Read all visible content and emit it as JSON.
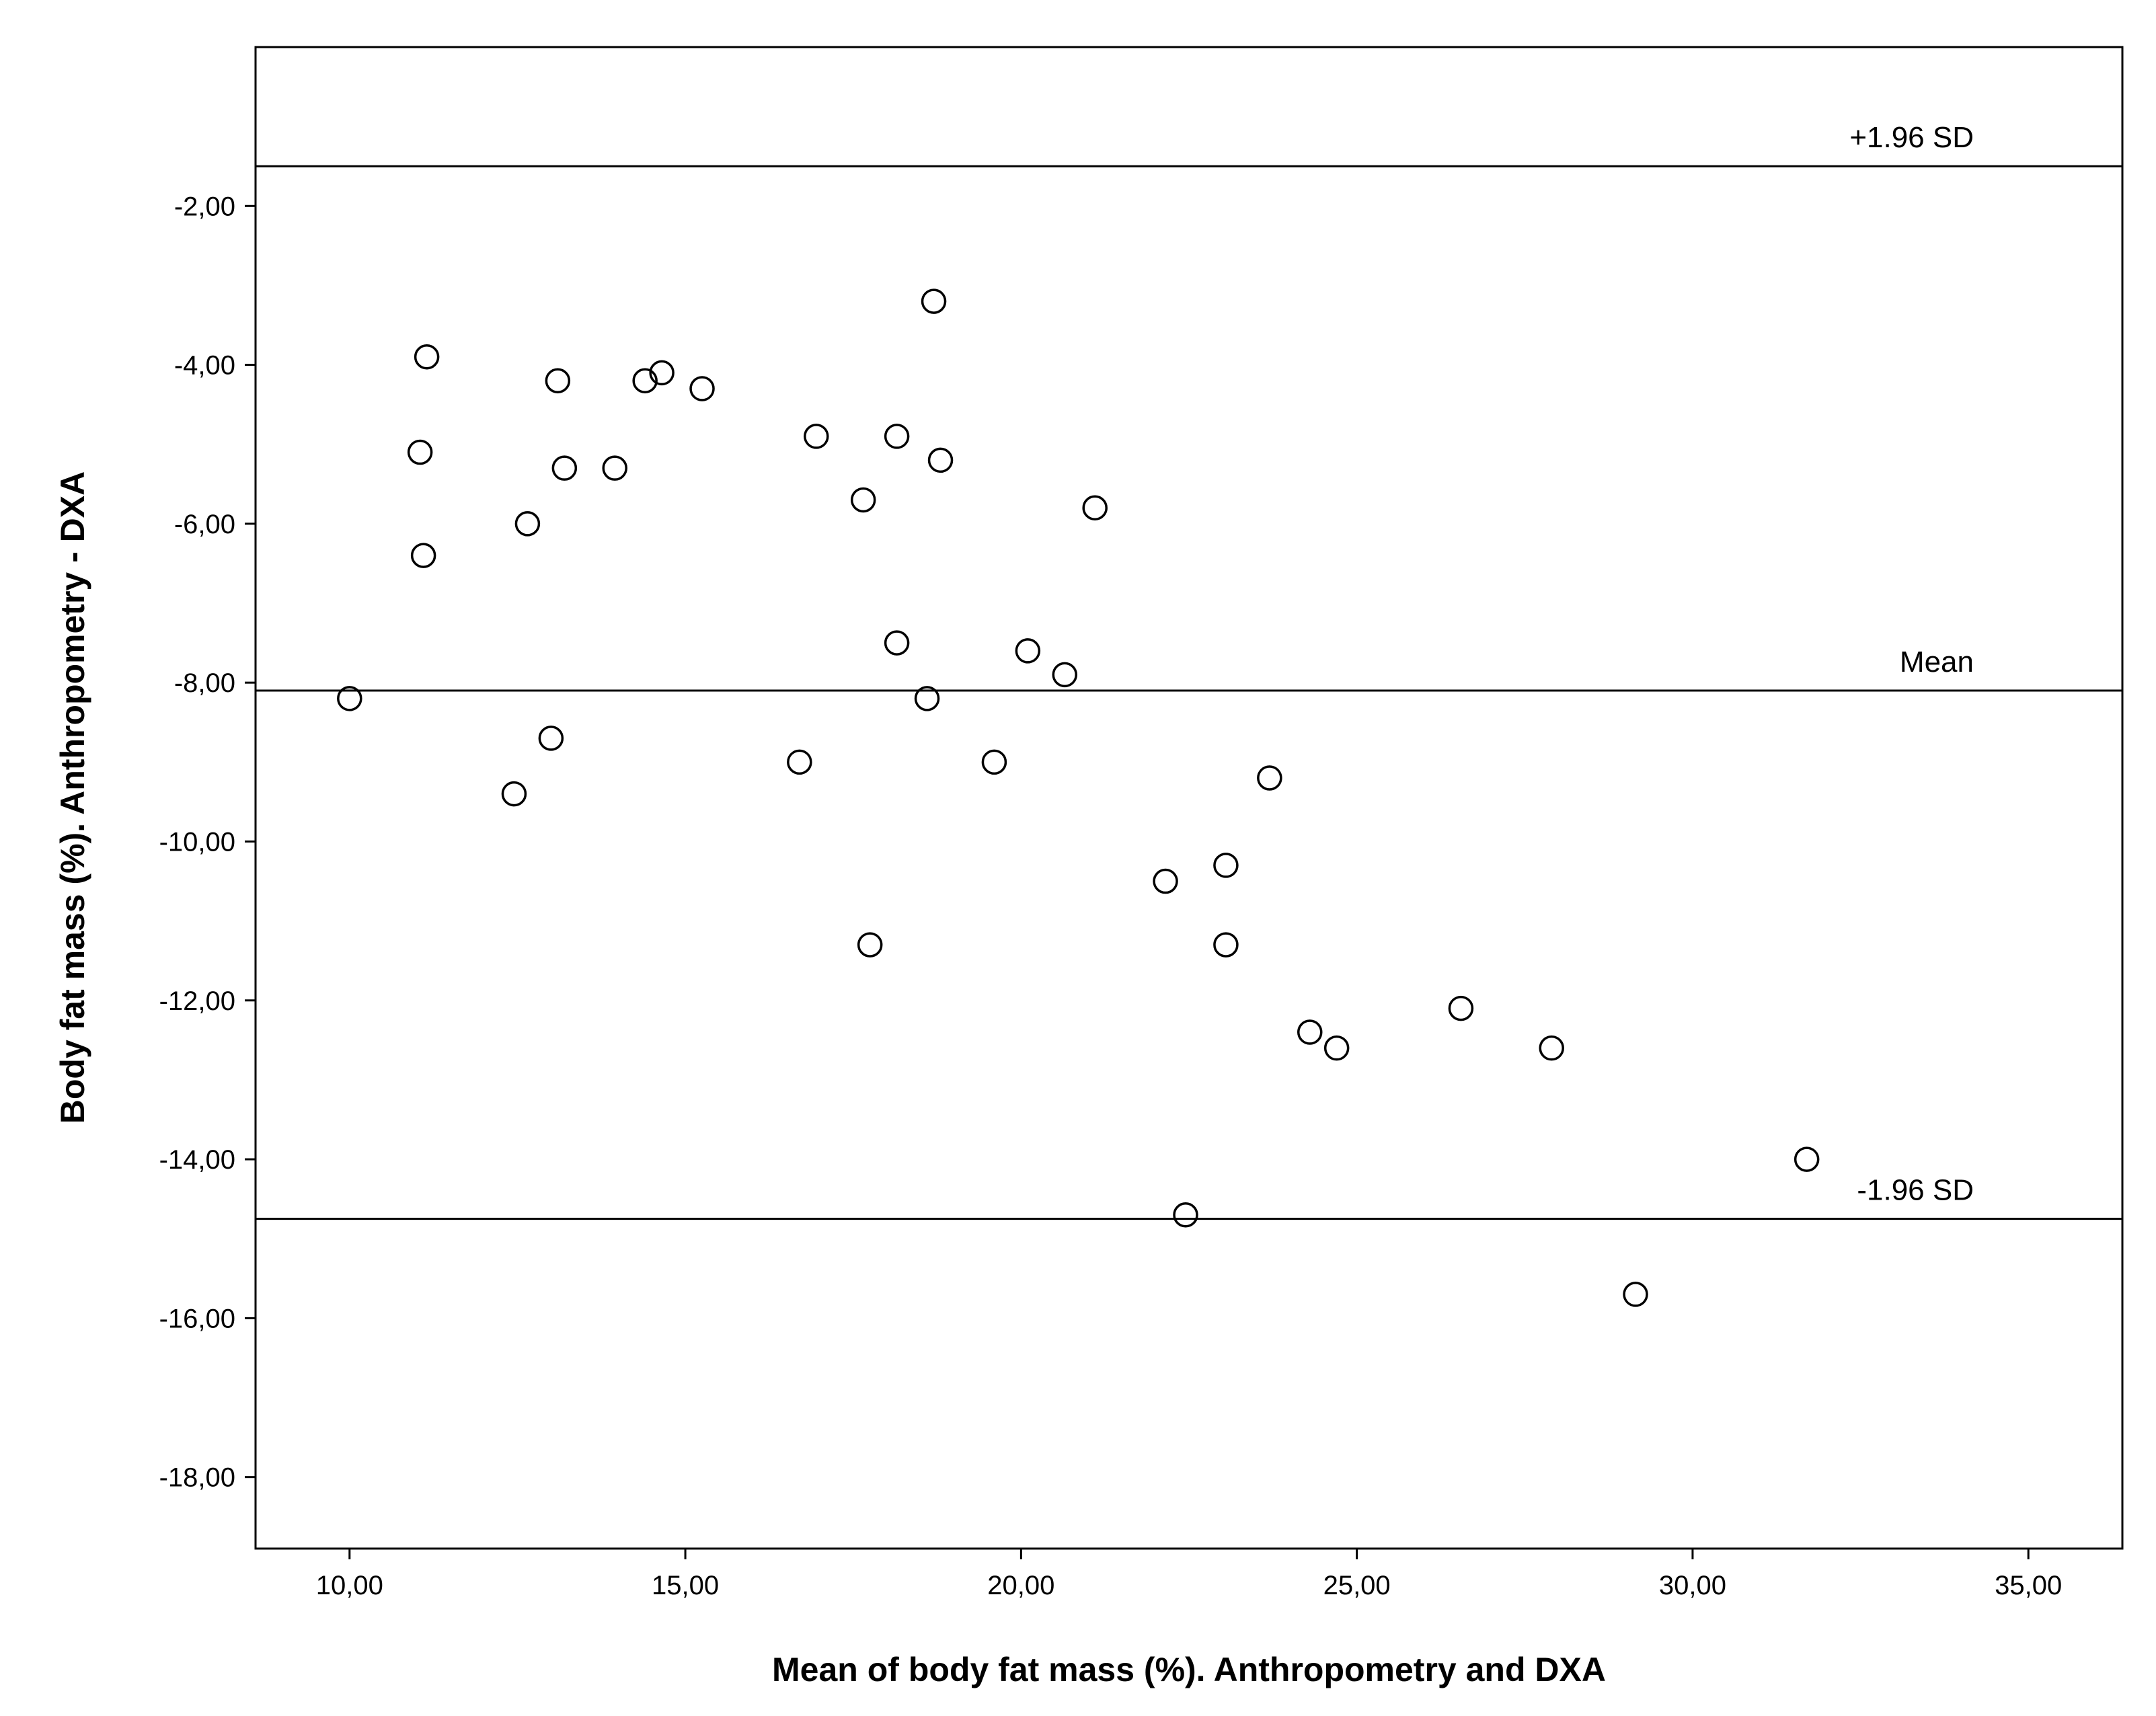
{
  "chart_data": {
    "type": "scatter",
    "title": "",
    "xlabel": "Mean of body fat mass (%). Anthropometry and DXA",
    "ylabel": "Body fat mass (%). Anthropometry - DXA",
    "xlim": [
      8.6,
      36.4
    ],
    "ylim": [
      -18.9,
      0
    ],
    "x_ticks": [
      10,
      15,
      20,
      25,
      30,
      35
    ],
    "x_tick_labels": [
      "10,00",
      "15,00",
      "20,00",
      "25,00",
      "30,00",
      "35,00"
    ],
    "y_ticks": [
      -2,
      -4,
      -6,
      -8,
      -10,
      -12,
      -14,
      -16,
      -18
    ],
    "y_tick_labels": [
      "-2,00",
      "-4,00",
      "-6,00",
      "-8,00",
      "-10,00",
      "-12,00",
      "-14,00",
      "-16,00",
      "-18,00"
    ],
    "grid": false,
    "marker": "open-circle",
    "reference_lines": [
      {
        "label": "+1.96 SD",
        "y": -1.5
      },
      {
        "label": "Mean",
        "y": -8.1
      },
      {
        "label": "-1.96 SD",
        "y": -14.75
      }
    ],
    "points": [
      {
        "x": 10.0,
        "y": -8.2
      },
      {
        "x": 11.05,
        "y": -5.1
      },
      {
        "x": 11.1,
        "y": -6.4
      },
      {
        "x": 11.15,
        "y": -3.9
      },
      {
        "x": 12.45,
        "y": -9.4
      },
      {
        "x": 12.65,
        "y": -6.0
      },
      {
        "x": 13.0,
        "y": -8.7
      },
      {
        "x": 13.1,
        "y": -4.2
      },
      {
        "x": 13.2,
        "y": -5.3
      },
      {
        "x": 13.95,
        "y": -5.3
      },
      {
        "x": 14.4,
        "y": -4.2
      },
      {
        "x": 14.65,
        "y": -4.1
      },
      {
        "x": 15.25,
        "y": -4.3
      },
      {
        "x": 16.7,
        "y": -9.0
      },
      {
        "x": 16.95,
        "y": -4.9
      },
      {
        "x": 17.65,
        "y": -5.7
      },
      {
        "x": 17.75,
        "y": -11.3
      },
      {
        "x": 18.15,
        "y": -4.9
      },
      {
        "x": 18.15,
        "y": -7.5
      },
      {
        "x": 18.6,
        "y": -8.2
      },
      {
        "x": 18.7,
        "y": -3.2
      },
      {
        "x": 18.8,
        "y": -5.2
      },
      {
        "x": 19.6,
        "y": -9.0
      },
      {
        "x": 20.1,
        "y": -7.6
      },
      {
        "x": 20.65,
        "y": -7.9
      },
      {
        "x": 21.1,
        "y": -5.8
      },
      {
        "x": 22.15,
        "y": -10.5
      },
      {
        "x": 22.45,
        "y": -14.7
      },
      {
        "x": 23.05,
        "y": -10.3
      },
      {
        "x": 23.05,
        "y": -11.3
      },
      {
        "x": 23.7,
        "y": -9.2
      },
      {
        "x": 24.3,
        "y": -12.4
      },
      {
        "x": 24.7,
        "y": -12.6
      },
      {
        "x": 26.55,
        "y": -12.1
      },
      {
        "x": 27.9,
        "y": -12.6
      },
      {
        "x": 29.15,
        "y": -15.7
      },
      {
        "x": 31.7,
        "y": -14.0
      }
    ]
  }
}
